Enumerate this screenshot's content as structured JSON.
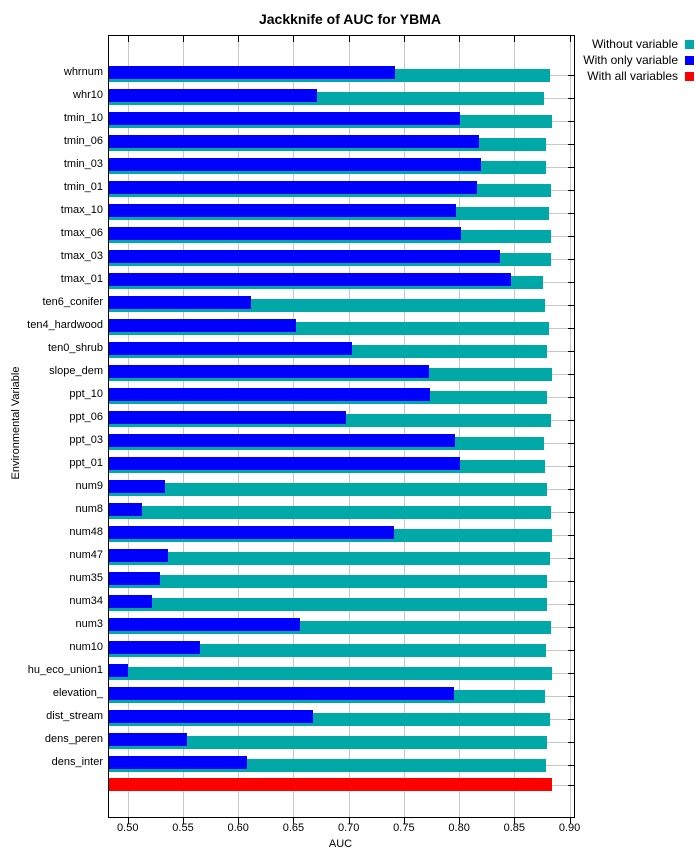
{
  "title": "Jackknife of AUC for YBMA",
  "legend": {
    "items": [
      {
        "label": "Without variable",
        "color": "#00A8A8"
      },
      {
        "label": "With only variable",
        "color": "#0000FF"
      },
      {
        "label": "With all variables",
        "color": "#FF0000"
      }
    ]
  },
  "chart_data": {
    "type": "bar",
    "orientation": "horizontal",
    "title": "Jackknife of AUC for YBMA",
    "xlabel": "AUC",
    "ylabel": "Environmental Variable",
    "xlim": [
      0.483,
      0.904
    ],
    "xticks": [
      0.5,
      0.55,
      0.6,
      0.65,
      0.7,
      0.75,
      0.8,
      0.85,
      0.9
    ],
    "grid": true,
    "legend_position": "top-right",
    "categories": [
      "whrnum",
      "whr10",
      "tmin_10",
      "tmin_06",
      "tmin_03",
      "tmin_01",
      "tmax_10",
      "tmax_06",
      "tmax_03",
      "tmax_01",
      "ten6_conifer",
      "ten4_hardwood",
      "ten0_shrub",
      "slope_dem",
      "ppt_10",
      "ppt_06",
      "ppt_03",
      "ppt_01",
      "num9",
      "num8",
      "num48",
      "num47",
      "num35",
      "num34",
      "num3",
      "num10",
      "hu_eco_union1",
      "elevation_",
      "dist_stream",
      "dens_peren",
      "dens_inter"
    ],
    "series": [
      {
        "name": "With only variable",
        "color": "#0000FF",
        "values": [
          0.742,
          0.671,
          0.801,
          0.818,
          0.82,
          0.816,
          0.797,
          0.802,
          0.837,
          0.847,
          0.612,
          0.652,
          0.703,
          0.773,
          0.774,
          0.698,
          0.796,
          0.801,
          0.534,
          0.513,
          0.741,
          0.536,
          0.529,
          0.522,
          0.656,
          0.565,
          0.5,
          0.795,
          0.668,
          0.554,
          0.608
        ]
      },
      {
        "name": "Without variable",
        "color": "#00A8A8",
        "values": [
          0.882,
          0.877,
          0.884,
          0.879,
          0.879,
          0.883,
          0.881,
          0.883,
          0.883,
          0.876,
          0.878,
          0.881,
          0.88,
          0.884,
          0.88,
          0.883,
          0.877,
          0.878,
          0.88,
          0.883,
          0.884,
          0.882,
          0.88,
          0.88,
          0.883,
          0.879,
          0.884,
          0.878,
          0.882,
          0.88,
          0.879
        ]
      }
    ],
    "with_all_variables": {
      "name": "With all variables",
      "color": "#FF0000",
      "value": 0.884
    }
  }
}
